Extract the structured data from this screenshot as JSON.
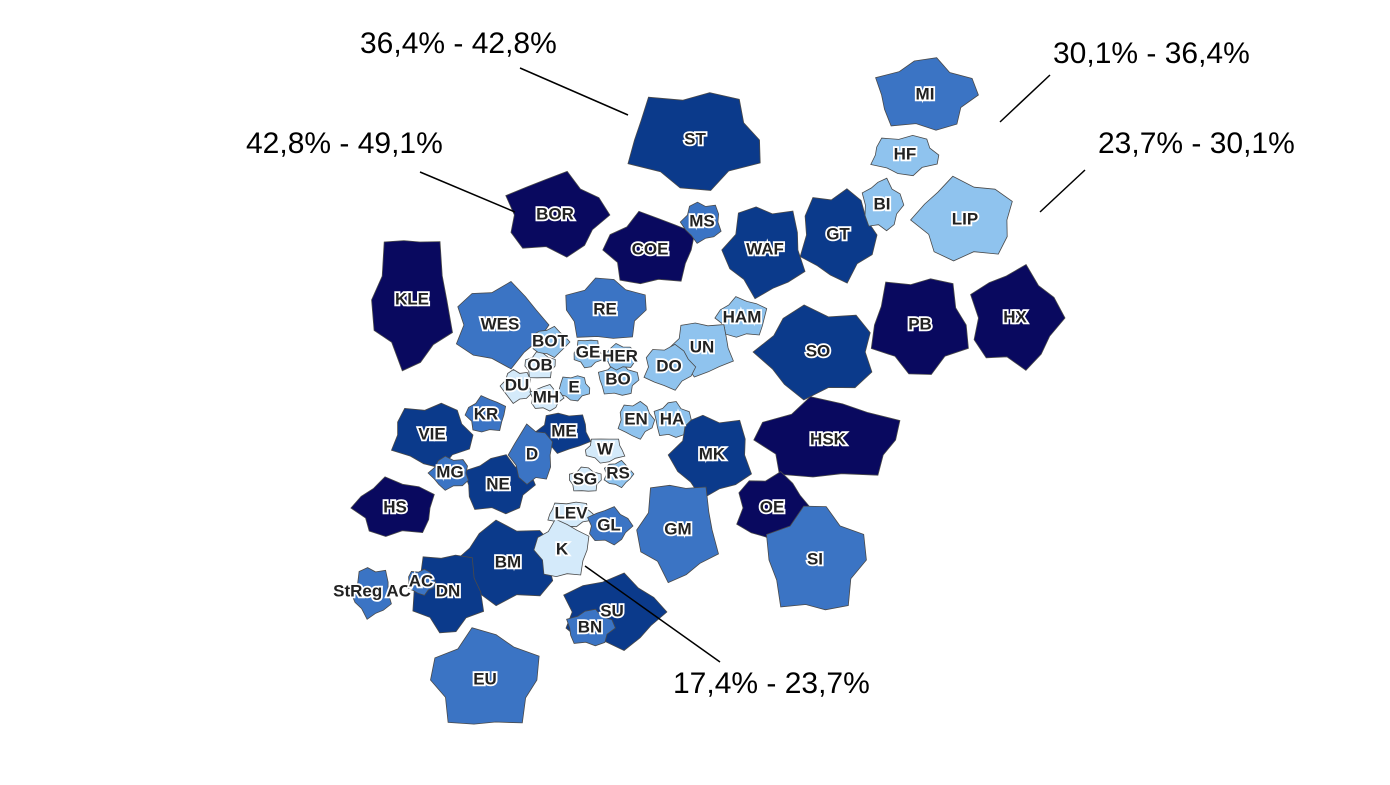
{
  "classes": [
    {
      "label": "17,4% - 23,7%",
      "color": "#d4eafa"
    },
    {
      "label": "23,7% - 30,1%",
      "color": "#8fc3ee"
    },
    {
      "label": "30,1% - 36,4%",
      "color": "#3b74c4"
    },
    {
      "label": "36,4% - 42,8%",
      "color": "#0b3a8b"
    },
    {
      "label": "42,8% - 49,1%",
      "color": "#09095f"
    }
  ],
  "districts": [
    {
      "label": "ST",
      "class": 3
    },
    {
      "label": "BOR",
      "class": 4
    },
    {
      "label": "COE",
      "class": 4
    },
    {
      "label": "WAF",
      "class": 3
    },
    {
      "label": "GT",
      "class": 3
    },
    {
      "label": "MI",
      "class": 2
    },
    {
      "label": "LIP",
      "class": 1
    },
    {
      "label": "KLE",
      "class": 4
    },
    {
      "label": "WES",
      "class": 2
    },
    {
      "label": "RE",
      "class": 2
    },
    {
      "label": "SO",
      "class": 3
    },
    {
      "label": "PB",
      "class": 4
    },
    {
      "label": "HX",
      "class": 4
    },
    {
      "label": "HSK",
      "class": 4
    },
    {
      "label": "MK",
      "class": 3
    },
    {
      "label": "VIE",
      "class": 3
    },
    {
      "label": "NE",
      "class": 3
    },
    {
      "label": "HS",
      "class": 4
    },
    {
      "label": "GM",
      "class": 2
    },
    {
      "label": "OE",
      "class": 4
    },
    {
      "label": "SI",
      "class": 2
    },
    {
      "label": "BM",
      "class": 3
    },
    {
      "label": "DN",
      "class": 3
    },
    {
      "label": "SU",
      "class": 3
    },
    {
      "label": "EU",
      "class": 2
    },
    {
      "label": "MS",
      "class": 2
    },
    {
      "label": "HF",
      "class": 1
    },
    {
      "label": "BI",
      "class": 1
    },
    {
      "label": "HAM",
      "class": 1
    },
    {
      "label": "UN",
      "class": 1
    },
    {
      "label": "DO",
      "class": 1
    },
    {
      "label": "BO",
      "class": 1
    },
    {
      "label": "HER",
      "class": 1
    },
    {
      "label": "GE",
      "class": 1
    },
    {
      "label": "BOT",
      "class": 1
    },
    {
      "label": "OB",
      "class": 0
    },
    {
      "label": "DU",
      "class": 0
    },
    {
      "label": "E",
      "class": 1
    },
    {
      "label": "MH",
      "class": 0
    },
    {
      "label": "KR",
      "class": 2
    },
    {
      "label": "ME",
      "class": 3
    },
    {
      "label": "EN",
      "class": 1
    },
    {
      "label": "HA",
      "class": 1
    },
    {
      "label": "D",
      "class": 2
    },
    {
      "label": "W",
      "class": 0
    },
    {
      "label": "RS",
      "class": 1
    },
    {
      "label": "SG",
      "class": 0
    },
    {
      "label": "MG",
      "class": 2
    },
    {
      "label": "LEV",
      "class": 0
    },
    {
      "label": "GL",
      "class": 2
    },
    {
      "label": "K",
      "class": 0
    },
    {
      "label": "StReg AC",
      "class": 2
    },
    {
      "label": "AC",
      "class": 2
    },
    {
      "label": "BN",
      "class": 2
    }
  ]
}
